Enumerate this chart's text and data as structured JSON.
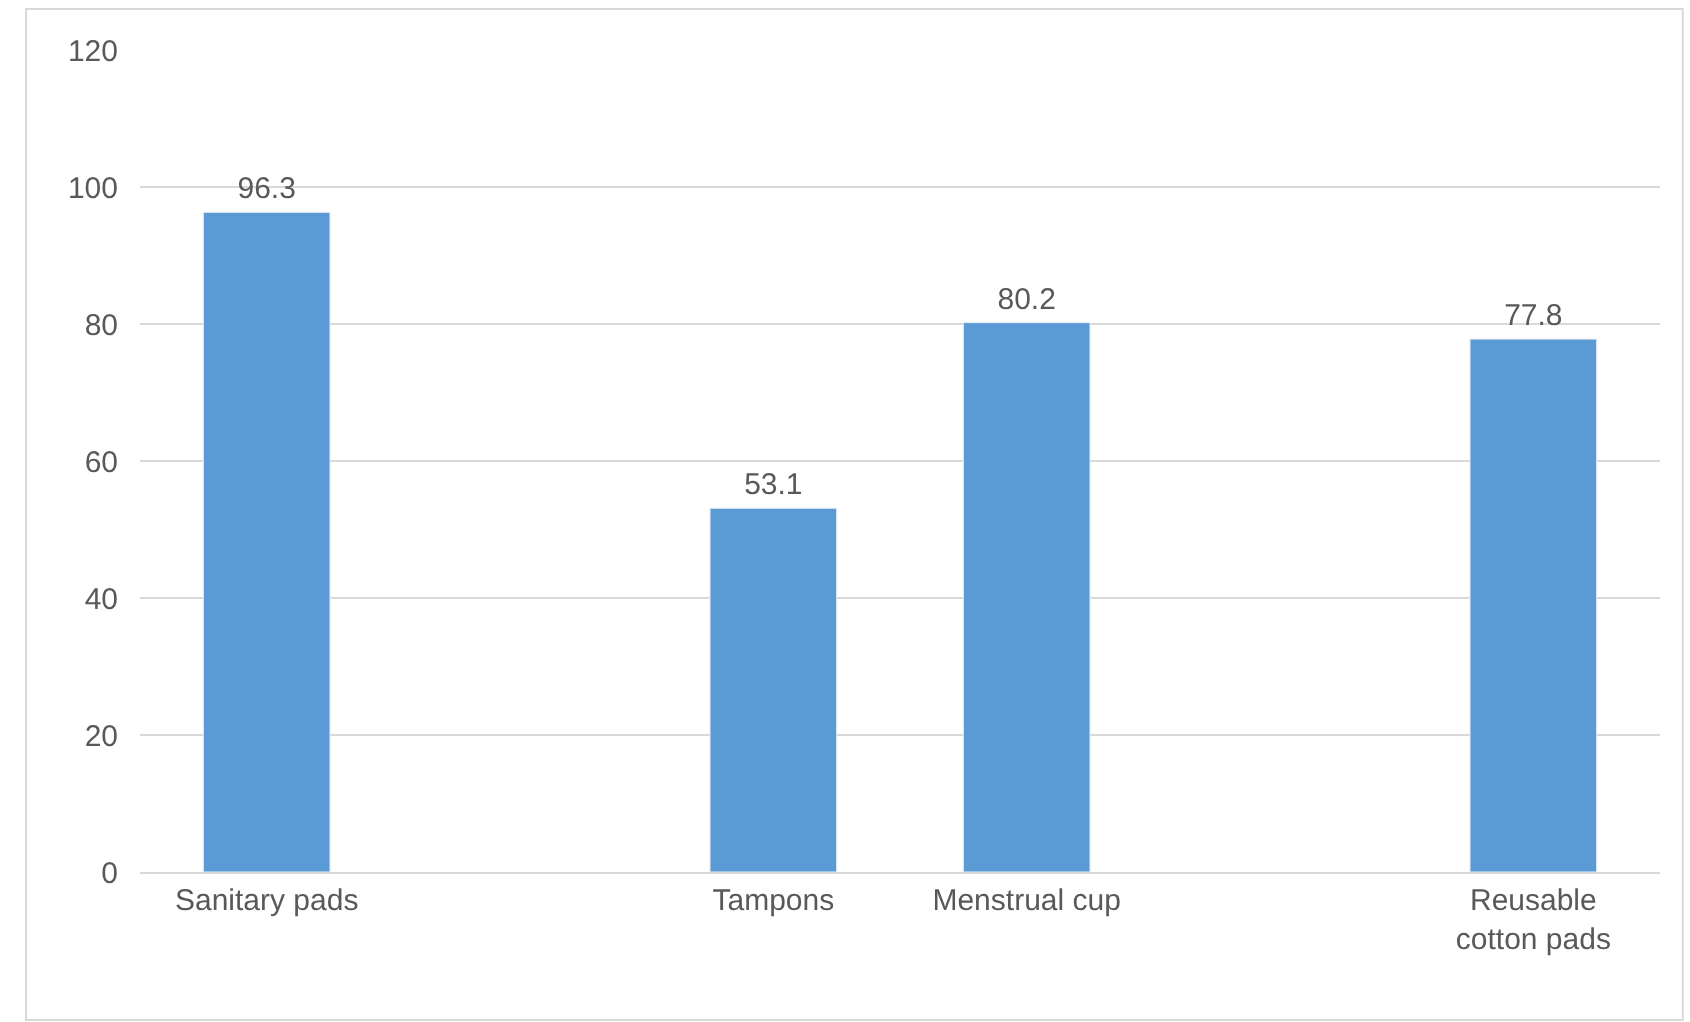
{
  "chart_data": {
    "type": "bar",
    "categories": [
      "Sanitary pads",
      null,
      "Tampons",
      "Menstrual cup",
      null,
      "Reusable cotton pads"
    ],
    "values": [
      96.3,
      null,
      53.1,
      80.2,
      null,
      77.8
    ],
    "color": "#5b9bd5",
    "ylim": [
      0,
      120
    ],
    "yticks": [
      0,
      20,
      40,
      60,
      80,
      100,
      120
    ],
    "grid": "y",
    "data_labels": true
  }
}
